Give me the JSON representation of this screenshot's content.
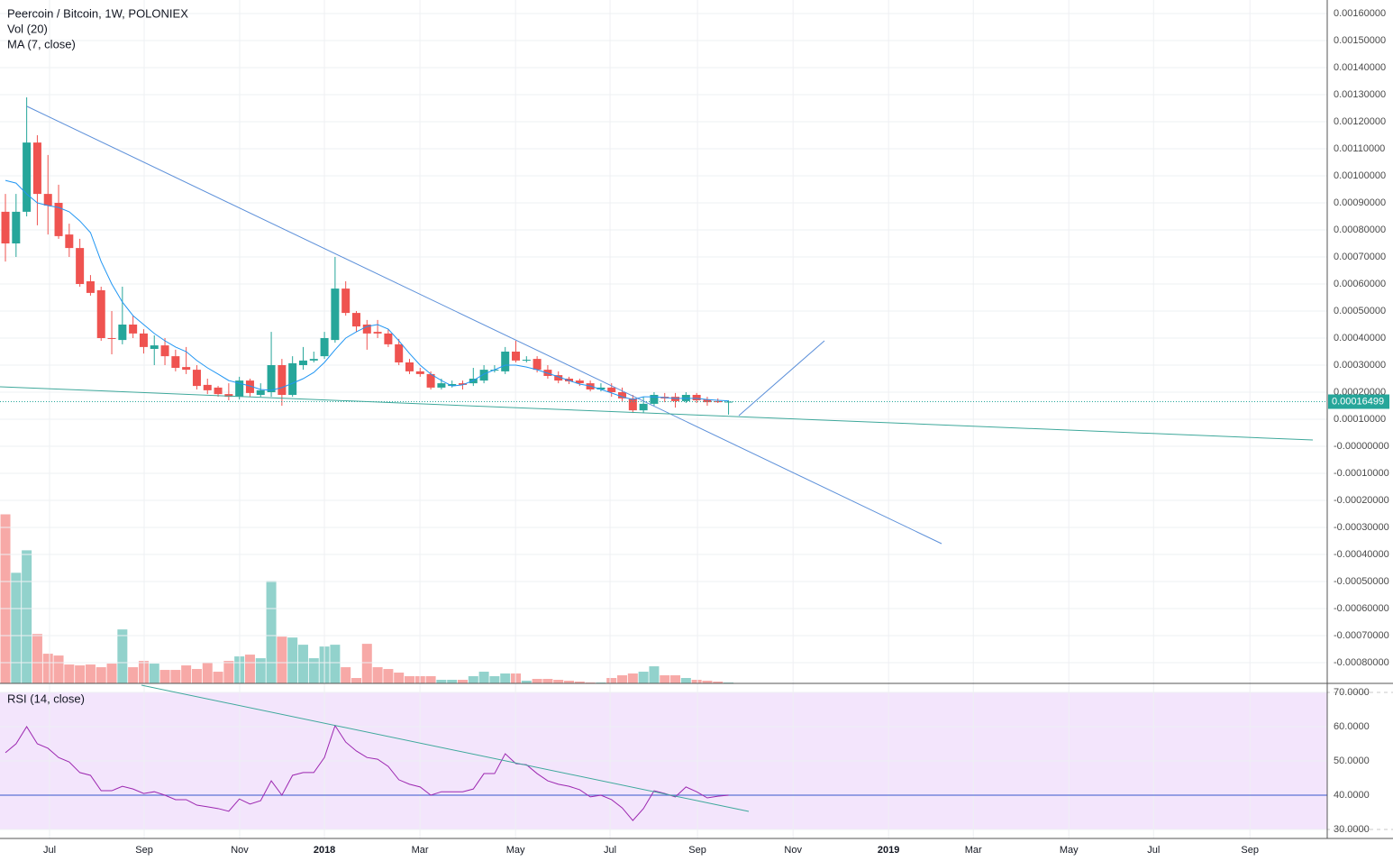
{
  "chart_data": [
    {
      "type": "candlestick",
      "title": "Peercoin / Bitcoin, 1W, POLONIEX",
      "x": [
        0,
        1,
        2,
        3,
        4,
        5,
        6,
        7,
        8,
        9,
        10,
        11,
        12,
        13,
        14,
        15,
        16,
        17,
        18,
        19,
        20,
        21,
        22,
        23,
        24,
        25,
        26,
        27,
        28,
        29,
        30,
        31,
        32,
        33,
        34,
        35,
        36,
        37,
        38,
        39,
        40,
        41,
        42,
        43,
        44,
        45,
        46,
        47,
        48,
        49,
        50,
        51,
        52,
        53,
        54,
        55,
        56,
        57,
        58,
        59,
        60,
        61,
        62,
        63,
        64,
        65,
        66,
        67,
        68
      ],
      "open": [
        0.000867,
        0.00075,
        0.000867,
        0.001123,
        0.000933,
        0.0009,
        0.000783,
        0.000733,
        0.00061,
        0.000577,
        0.0004,
        0.000393,
        0.00045,
        0.000417,
        0.00036,
        0.000373,
        0.000333,
        0.000293,
        0.000283,
        0.000227,
        0.000217,
        0.000193,
        0.000183,
        0.000243,
        0.00019,
        0.0002,
        0.0003,
        0.00019,
        0.0003,
        0.000317,
        0.000333,
        0.000393,
        0.000583,
        0.000493,
        0.00045,
        0.000423,
        0.000417,
        0.000377,
        0.00031,
        0.000277,
        0.000267,
        0.000217,
        0.000223,
        0.000233,
        0.000233,
        0.000243,
        0.00028,
        0.000277,
        0.00035,
        0.000317,
        0.000323,
        0.000283,
        0.000263,
        0.00025,
        0.000243,
        0.000233,
        0.00021,
        0.000217,
        0.0002,
        0.000177,
        0.000133,
        0.000157,
        0.000183,
        0.000183,
        0.000167,
        0.00019,
        0.000173,
        0.000167,
        0.000163
      ],
      "high": [
        0.000933,
        0.000933,
        0.00129,
        0.00115,
        0.001077,
        0.000967,
        0.000823,
        0.000767,
        0.000633,
        0.00059,
        0.0005,
        0.00059,
        0.000483,
        0.000433,
        0.00041,
        0.0004,
        0.000357,
        0.000367,
        0.0003,
        0.00025,
        0.000223,
        0.000233,
        0.000257,
        0.00025,
        0.000233,
        0.000423,
        0.000323,
        0.000333,
        0.000367,
        0.00035,
        0.000423,
        0.0007,
        0.00061,
        0.0005,
        0.000467,
        0.000467,
        0.000433,
        0.000397,
        0.000323,
        0.00029,
        0.000277,
        0.00025,
        0.000243,
        0.000243,
        0.00029,
        0.0003,
        0.0003,
        0.000367,
        0.00039,
        0.000333,
        0.000333,
        0.0003,
        0.000277,
        0.000257,
        0.00025,
        0.000243,
        0.000233,
        0.000233,
        0.000217,
        0.00019,
        0.000183,
        0.0002,
        0.000197,
        0.000197,
        0.0002,
        0.000197,
        0.000183,
        0.000177,
        0.00017
      ],
      "low": [
        0.000683,
        0.0007,
        0.00085,
        0.000817,
        0.000783,
        0.000767,
        0.0007,
        0.00059,
        0.000557,
        0.00039,
        0.00034,
        0.000377,
        0.0004,
        0.000343,
        0.0003,
        0.0003,
        0.000277,
        0.000267,
        0.00021,
        0.000193,
        0.000183,
        0.00017,
        0.000173,
        0.000183,
        0.000183,
        0.000183,
        0.00015,
        0.000183,
        0.000283,
        0.00031,
        0.000323,
        0.000383,
        0.000483,
        0.000423,
        0.000357,
        0.0004,
        0.000367,
        0.0003,
        0.000267,
        0.000257,
        0.00021,
        0.00021,
        0.000217,
        0.00021,
        0.000223,
        0.000233,
        0.000273,
        0.000267,
        0.00031,
        0.00031,
        0.000273,
        0.00025,
        0.000233,
        0.00023,
        0.000223,
        0.000203,
        0.000203,
        0.000183,
        0.000167,
        0.000123,
        0.000123,
        0.00015,
        0.000163,
        0.000143,
        0.00016,
        0.00016,
        0.00015,
        0.00016,
        0.000117
      ],
      "close": [
        0.00075,
        0.000867,
        0.001123,
        0.000933,
        0.00089,
        0.000777,
        0.000733,
        0.0006,
        0.000567,
        0.0004,
        0.000397,
        0.00045,
        0.000417,
        0.000367,
        0.000373,
        0.000333,
        0.00029,
        0.000283,
        0.000223,
        0.000207,
        0.000193,
        0.000183,
        0.000243,
        0.000197,
        0.000207,
        0.0003,
        0.00019,
        0.000307,
        0.000317,
        0.000323,
        0.0004,
        0.000583,
        0.000493,
        0.000443,
        0.000417,
        0.000417,
        0.000377,
        0.00031,
        0.000277,
        0.000267,
        0.000217,
        0.000233,
        0.00023,
        0.000227,
        0.00025,
        0.000283,
        0.000283,
        0.00035,
        0.000317,
        0.00032,
        0.000283,
        0.00026,
        0.000243,
        0.00024,
        0.000233,
        0.00021,
        0.000217,
        0.0002,
        0.000177,
        0.000133,
        0.000157,
        0.00019,
        0.000177,
        0.000167,
        0.00019,
        0.00017,
        0.000163,
        0.000163,
        0.00016499
      ],
      "up_color": "#26a69a",
      "down_color": "#ef5350",
      "last_price": {
        "value": 0.00016499,
        "label": "0.00016499"
      },
      "volume": {
        "name": "Vol (20)",
        "ylim": [
          0,
          760
        ],
        "values": [
          188,
          123,
          148,
          55,
          33,
          31,
          21,
          20,
          21,
          18,
          22,
          60,
          18,
          25,
          22,
          15,
          15,
          20,
          16,
          23,
          13,
          25,
          30,
          32,
          28,
          114,
          52,
          51,
          43,
          28,
          41,
          43,
          18,
          6,
          44,
          18,
          16,
          12,
          8,
          8,
          8,
          4,
          4,
          4,
          8,
          13,
          8,
          11,
          11,
          3,
          5,
          5,
          4,
          3,
          2,
          1,
          1,
          6,
          9,
          11,
          13,
          19,
          9,
          9,
          6,
          4,
          3,
          2,
          1
        ]
      },
      "series": [
        {
          "name": "MA (7, close)",
          "color": "#2196f3",
          "values": [
            0.000983,
            0.000973,
            0.000933,
            0.0009,
            0.00089,
            0.000883,
            0.000867,
            0.000833,
            0.00079,
            0.000683,
            0.0006,
            0.000533,
            0.000483,
            0.00045,
            0.000417,
            0.00039,
            0.000367,
            0.00035,
            0.000317,
            0.00029,
            0.000267,
            0.000243,
            0.000233,
            0.000223,
            0.00021,
            0.000207,
            0.000217,
            0.000233,
            0.00025,
            0.000273,
            0.00031,
            0.000357,
            0.0004,
            0.000423,
            0.000443,
            0.00045,
            0.000433,
            0.00039,
            0.000343,
            0.0003,
            0.000267,
            0.000243,
            0.000223,
            0.000227,
            0.000243,
            0.000267,
            0.000283,
            0.0003,
            0.0003,
            0.000293,
            0.000283,
            0.00027,
            0.000257,
            0.000243,
            0.00023,
            0.000223,
            0.00021,
            0.000197,
            0.000183,
            0.000173,
            0.000183,
            0.000183,
            0.00018,
            0.000177,
            0.000177,
            0.000177,
            0.000173,
            0.00017,
            0.000168
          ]
        }
      ],
      "xlim": [
        -0.51,
        124.3
      ],
      "ylim": [
        -0.00087667,
        0.00165
      ],
      "yticks": [
        {
          "value": 0.0016,
          "label": "0.00160000"
        },
        {
          "value": 0.0015,
          "label": "0.00150000"
        },
        {
          "value": 0.0014,
          "label": "0.00140000"
        },
        {
          "value": 0.0013,
          "label": "0.00130000"
        },
        {
          "value": 0.0012,
          "label": "0.00120000"
        },
        {
          "value": 0.0011,
          "label": "0.00110000"
        },
        {
          "value": 0.001,
          "label": "0.00100000"
        },
        {
          "value": 0.0009,
          "label": "0.00090000"
        },
        {
          "value": 0.0008,
          "label": "0.00080000"
        },
        {
          "value": 0.0007,
          "label": "0.00070000"
        },
        {
          "value": 0.0006,
          "label": "0.00060000"
        },
        {
          "value": 0.0005,
          "label": "0.00050000"
        },
        {
          "value": 0.0004,
          "label": "0.00040000"
        },
        {
          "value": 0.0003,
          "label": "0.00030000"
        },
        {
          "value": 0.0002,
          "label": "0.00020000"
        },
        {
          "value": 0.0001,
          "label": "0.00010000"
        },
        {
          "value": 0,
          "label": "-0.00000000"
        },
        {
          "value": -0.0001,
          "label": "-0.00010000"
        },
        {
          "value": -0.0002,
          "label": "-0.00020000"
        },
        {
          "value": -0.0003,
          "label": "-0.00030000"
        },
        {
          "value": -0.0004,
          "label": "-0.00040000"
        },
        {
          "value": -0.0005,
          "label": "-0.00050000"
        },
        {
          "value": -0.0006,
          "label": "-0.00060000"
        },
        {
          "value": -0.0007,
          "label": "-0.00070000"
        },
        {
          "value": -0.0008,
          "label": "-0.00080000"
        }
      ],
      "grid": true
    },
    {
      "type": "line",
      "title": "RSI (14, close)",
      "x": [
        0,
        1,
        2,
        3,
        4,
        5,
        6,
        7,
        8,
        9,
        10,
        11,
        12,
        13,
        14,
        15,
        16,
        17,
        18,
        19,
        20,
        21,
        22,
        23,
        24,
        25,
        26,
        27,
        28,
        29,
        30,
        31,
        32,
        33,
        34,
        35,
        36,
        37,
        38,
        39,
        40,
        41,
        42,
        43,
        44,
        45,
        46,
        47,
        48,
        49,
        50,
        51,
        52,
        53,
        54,
        55,
        56,
        57,
        58,
        59,
        60,
        61,
        62,
        63,
        64,
        65,
        66,
        67,
        68
      ],
      "series": [
        {
          "color": "#9c27b0",
          "values": [
            52.4,
            55,
            60,
            55,
            53.7,
            51,
            49.7,
            46.6,
            45.8,
            41.3,
            41.3,
            42.6,
            41.8,
            40.5,
            41,
            40,
            38.7,
            38.7,
            37.1,
            36.6,
            36.1,
            35.3,
            38.9,
            37.4,
            38.4,
            44.2,
            40,
            45.8,
            46.6,
            46.6,
            51,
            60.3,
            55.5,
            52.9,
            51,
            50.5,
            48.4,
            44.5,
            43.2,
            42.4,
            40,
            41,
            41,
            41,
            41.8,
            46.3,
            46.3,
            52.1,
            49.2,
            48.9,
            46.3,
            44.2,
            43.2,
            42.6,
            41.6,
            39.5,
            40,
            38.7,
            36.3,
            32.6,
            36.1,
            41.3,
            40.5,
            39.5,
            42.4,
            41,
            39.2,
            39.7,
            40
          ]
        }
      ],
      "bands": [
        30,
        70
      ],
      "band_color": "#f3e5fc",
      "hline": 40,
      "hline_color": "#5d74d6",
      "xlim": [
        -0.51,
        124.3
      ],
      "ylim": [
        27.37,
        72.63
      ],
      "yticks": [
        {
          "value": 30,
          "label": "30.0000"
        },
        {
          "value": 40,
          "label": "40.0000"
        },
        {
          "value": 50,
          "label": "50.0000"
        },
        {
          "value": 60,
          "label": "60.0000"
        },
        {
          "value": 70,
          "label": "70.0000"
        }
      ],
      "xticks": [
        {
          "value": 4.15,
          "label": "Jul"
        },
        {
          "value": 13.05,
          "label": "Sep"
        },
        {
          "value": 22.03,
          "label": "Nov"
        },
        {
          "value": 30,
          "label": "2018"
        },
        {
          "value": 38.98,
          "label": "Mar"
        },
        {
          "value": 47.97,
          "label": "May"
        },
        {
          "value": 56.86,
          "label": "Jul"
        },
        {
          "value": 65.08,
          "label": "Sep"
        },
        {
          "value": 74.07,
          "label": "Nov"
        },
        {
          "value": 83.05,
          "label": "2019"
        },
        {
          "value": 91.02,
          "label": "Mar"
        },
        {
          "value": 100,
          "label": "May"
        },
        {
          "value": 107.97,
          "label": "Jul"
        },
        {
          "value": 117.03,
          "label": "Sep"
        }
      ],
      "grid": true
    }
  ]
}
